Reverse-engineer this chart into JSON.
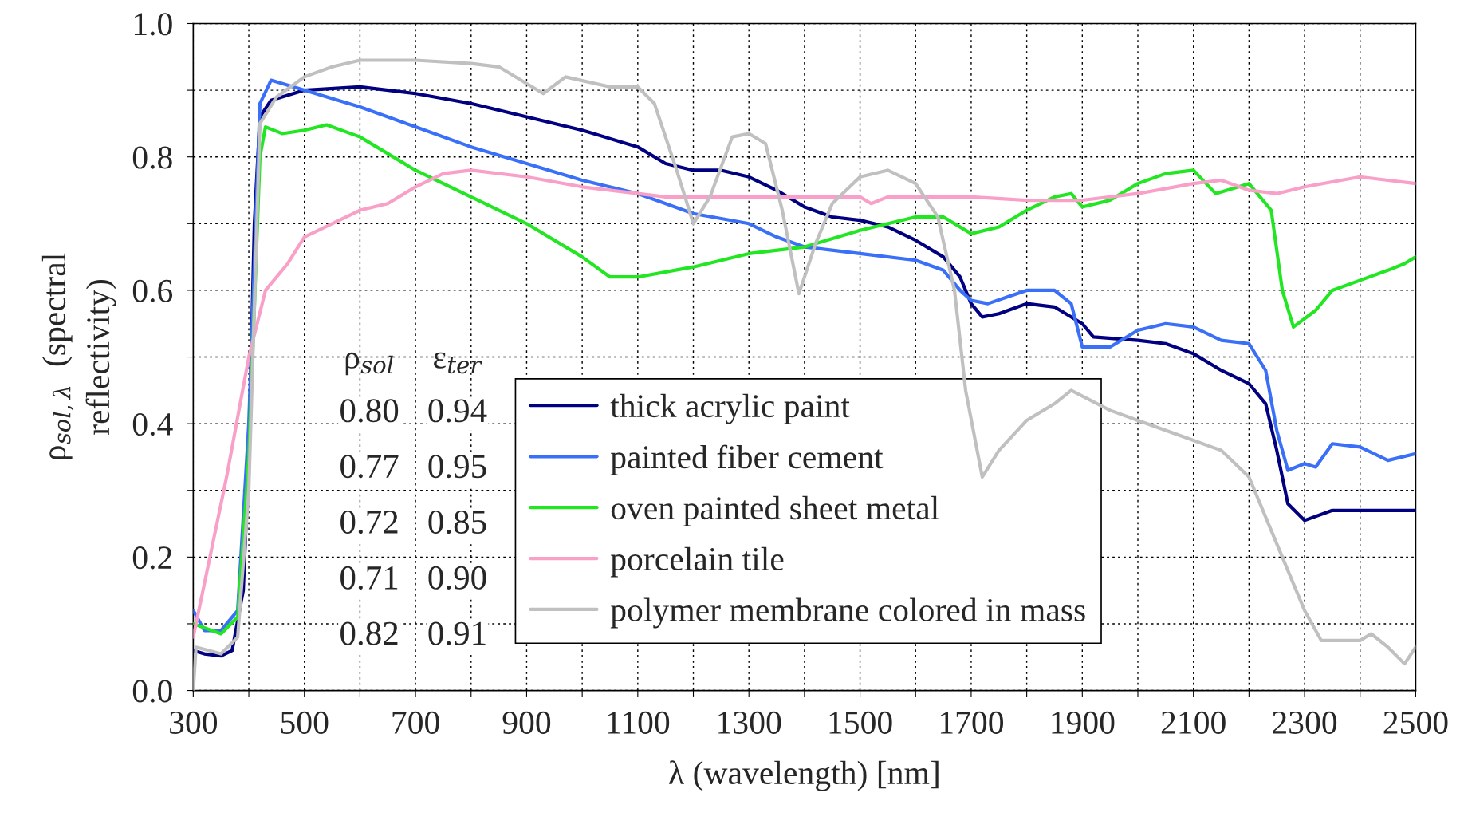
{
  "chart_data": {
    "type": "line",
    "xlabel": "λ (wavelength) [nm]",
    "ylabel": "ρ$_{sol,λ}$  (spectral\nreflectivity)",
    "xlim": [
      300,
      2500
    ],
    "ylim": [
      0,
      1
    ],
    "xticks": [
      300,
      {
        "value": 400,
        "label": null
      },
      500,
      {
        "value": 600,
        "label": null
      },
      700,
      {
        "value": 800,
        "label": null
      },
      900,
      {
        "value": 1000,
        "label": null
      },
      1100,
      {
        "value": 1200,
        "label": null
      },
      1300,
      {
        "value": 1400,
        "label": null
      },
      1500,
      {
        "value": 1600,
        "label": null
      },
      1700,
      {
        "value": 1800,
        "label": null
      },
      1900,
      {
        "value": 2000,
        "label": null
      },
      2100,
      {
        "value": 2200,
        "label": null
      },
      2300,
      {
        "value": 2400,
        "label": null
      },
      2500
    ],
    "yticks": [
      {
        "value": 0,
        "label": "0.0"
      },
      {
        "value": 0.1,
        "label": null
      },
      {
        "value": 0.2,
        "label": "0.2"
      },
      {
        "value": 0.3,
        "label": null
      },
      {
        "value": 0.4,
        "label": "0.4"
      },
      {
        "value": 0.5,
        "label": null
      },
      {
        "value": 0.6,
        "label": "0.6"
      },
      {
        "value": 0.7,
        "label": null
      },
      {
        "value": 0.8,
        "label": "0.8"
      },
      {
        "value": 0.9,
        "label": null
      },
      {
        "value": 1.0,
        "label": "1.0"
      }
    ],
    "grid": true,
    "legend": "bottom",
    "line_style": "solid",
    "marker": "none",
    "annotations": [
      "ρ$_{sol}$",
      "ε$_{ter}$",
      "0.80",
      "0.94",
      "0.77",
      "0.95",
      "0.72",
      "0.85",
      "0.71",
      "0.90",
      "0.82",
      "0.91"
    ],
    "series": [
      {
        "name": "thick acrylic paint",
        "color": "#000080",
        "x": [
          300,
          320,
          350,
          370,
          390,
          400,
          410,
          420,
          440,
          500,
          600,
          700,
          800,
          900,
          1000,
          1100,
          1150,
          1200,
          1250,
          1300,
          1350,
          1400,
          1450,
          1500,
          1550,
          1600,
          1650,
          1680,
          1700,
          1720,
          1750,
          1800,
          1850,
          1900,
          1920,
          2000,
          2050,
          2100,
          2150,
          2200,
          2230,
          2250,
          2270,
          2300,
          2350,
          2400,
          2450,
          2500
        ],
        "values": [
          0.06,
          0.055,
          0.052,
          0.06,
          0.15,
          0.35,
          0.7,
          0.86,
          0.885,
          0.9,
          0.905,
          0.895,
          0.88,
          0.86,
          0.84,
          0.815,
          0.79,
          0.78,
          0.78,
          0.77,
          0.75,
          0.725,
          0.71,
          0.705,
          0.695,
          0.675,
          0.65,
          0.62,
          0.58,
          0.56,
          0.565,
          0.58,
          0.575,
          0.55,
          0.53,
          0.525,
          0.52,
          0.505,
          0.48,
          0.46,
          0.43,
          0.36,
          0.28,
          0.255,
          0.27,
          0.27,
          0.27,
          0.27
        ]
      },
      {
        "name": "painted fiber cement",
        "color": "#3a6ff7",
        "x": [
          300,
          320,
          350,
          380,
          400,
          420,
          440,
          500,
          600,
          700,
          800,
          900,
          1000,
          1100,
          1200,
          1300,
          1350,
          1400,
          1500,
          1600,
          1650,
          1680,
          1700,
          1730,
          1800,
          1850,
          1880,
          1900,
          1950,
          2000,
          2050,
          2100,
          2150,
          2200,
          2230,
          2250,
          2270,
          2300,
          2320,
          2350,
          2400,
          2450,
          2500
        ],
        "values": [
          0.12,
          0.09,
          0.09,
          0.12,
          0.4,
          0.88,
          0.915,
          0.9,
          0.875,
          0.845,
          0.815,
          0.79,
          0.765,
          0.745,
          0.715,
          0.7,
          0.68,
          0.665,
          0.655,
          0.645,
          0.63,
          0.6,
          0.585,
          0.58,
          0.6,
          0.6,
          0.58,
          0.515,
          0.515,
          0.54,
          0.55,
          0.545,
          0.525,
          0.52,
          0.48,
          0.39,
          0.33,
          0.34,
          0.335,
          0.37,
          0.365,
          0.345,
          0.355
        ]
      },
      {
        "name": "oven painted sheet metal",
        "color": "#22e622",
        "x": [
          300,
          350,
          380,
          400,
          420,
          430,
          460,
          500,
          540,
          600,
          700,
          800,
          900,
          1000,
          1050,
          1100,
          1200,
          1300,
          1400,
          1500,
          1600,
          1650,
          1700,
          1750,
          1800,
          1850,
          1880,
          1900,
          1950,
          2000,
          2050,
          2100,
          2140,
          2200,
          2240,
          2260,
          2280,
          2320,
          2350,
          2400,
          2450,
          2480,
          2500
        ],
        "values": [
          0.1,
          0.085,
          0.11,
          0.35,
          0.8,
          0.845,
          0.835,
          0.84,
          0.848,
          0.83,
          0.78,
          0.74,
          0.7,
          0.65,
          0.62,
          0.62,
          0.635,
          0.655,
          0.665,
          0.69,
          0.71,
          0.71,
          0.685,
          0.695,
          0.72,
          0.74,
          0.745,
          0.725,
          0.735,
          0.76,
          0.775,
          0.78,
          0.745,
          0.76,
          0.72,
          0.6,
          0.545,
          0.57,
          0.6,
          0.615,
          0.63,
          0.64,
          0.65
        ]
      },
      {
        "name": "porcelain tile",
        "color": "#f9a0c8",
        "x": [
          300,
          330,
          360,
          400,
          430,
          470,
          500,
          550,
          600,
          650,
          700,
          750,
          800,
          900,
          1000,
          1100,
          1150,
          1200,
          1300,
          1400,
          1500,
          1520,
          1550,
          1700,
          1800,
          1900,
          2000,
          2100,
          2150,
          2200,
          2250,
          2300,
          2400,
          2450,
          2500
        ],
        "values": [
          0.08,
          0.2,
          0.32,
          0.5,
          0.6,
          0.64,
          0.68,
          0.7,
          0.72,
          0.73,
          0.755,
          0.775,
          0.78,
          0.77,
          0.755,
          0.745,
          0.74,
          0.74,
          0.74,
          0.74,
          0.74,
          0.73,
          0.74,
          0.74,
          0.735,
          0.735,
          0.745,
          0.76,
          0.765,
          0.75,
          0.745,
          0.755,
          0.77,
          0.765,
          0.76
        ]
      },
      {
        "name": "polymer membrane colored in mass",
        "color": "#c0c0c0",
        "x": [
          300,
          305,
          350,
          380,
          400,
          420,
          450,
          500,
          550,
          600,
          700,
          800,
          850,
          900,
          930,
          970,
          1050,
          1100,
          1130,
          1170,
          1200,
          1230,
          1270,
          1300,
          1330,
          1360,
          1390,
          1420,
          1450,
          1500,
          1550,
          1600,
          1640,
          1670,
          1690,
          1720,
          1750,
          1800,
          1850,
          1880,
          1950,
          2000,
          2100,
          2150,
          2200,
          2250,
          2300,
          2330,
          2400,
          2420,
          2450,
          2480,
          2500
        ],
        "values": [
          0.0,
          0.065,
          0.055,
          0.08,
          0.3,
          0.85,
          0.89,
          0.92,
          0.935,
          0.945,
          0.945,
          0.94,
          0.935,
          0.91,
          0.895,
          0.92,
          0.905,
          0.905,
          0.88,
          0.78,
          0.7,
          0.74,
          0.83,
          0.835,
          0.82,
          0.72,
          0.595,
          0.67,
          0.73,
          0.77,
          0.78,
          0.76,
          0.71,
          0.6,
          0.45,
          0.32,
          0.36,
          0.405,
          0.43,
          0.45,
          0.42,
          0.405,
          0.375,
          0.36,
          0.32,
          0.22,
          0.12,
          0.075,
          0.075,
          0.085,
          0.065,
          0.04,
          0.065
        ]
      }
    ]
  }
}
